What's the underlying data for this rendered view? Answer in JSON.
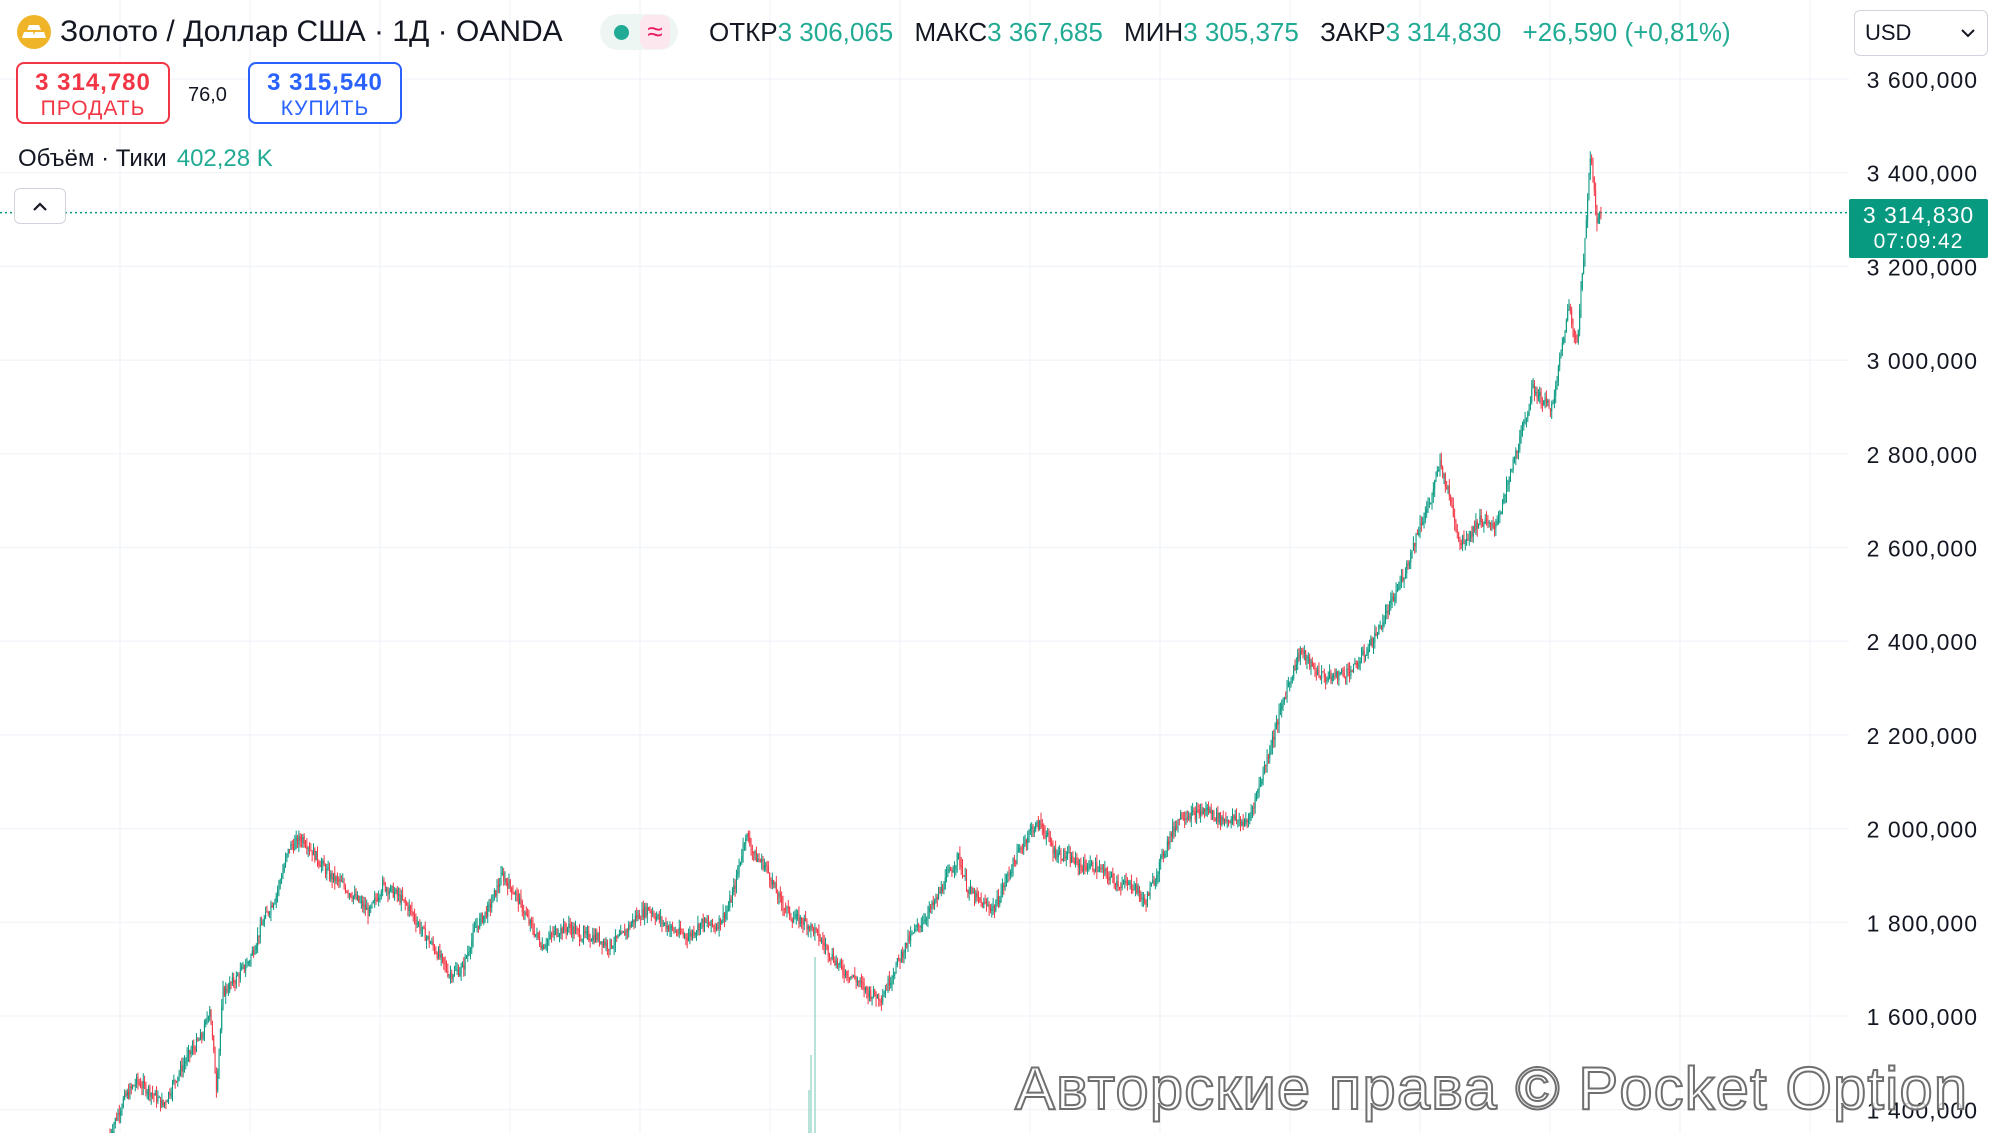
{
  "header": {
    "symbol_title": "Золото / Доллар США · 1Д · OANDA",
    "status_wave_glyph": "≈",
    "ohlc": {
      "open_label": "ОТКР",
      "open_value": "3 306,065",
      "high_label": "МАКС",
      "high_value": "3 367,685",
      "low_label": "МИН",
      "low_value": "3 305,375",
      "close_label": "ЗАКР",
      "close_value": "3 314,830",
      "change": "+26,590 (+0,81%)"
    }
  },
  "trade": {
    "sell_price": "3 314,780",
    "sell_label": "ПРОДАТЬ",
    "spread": "76,0",
    "buy_price": "3 315,540",
    "buy_label": "КУПИТЬ"
  },
  "volume": {
    "label": "Объём · Тики",
    "value": "402,28 K"
  },
  "currency": {
    "selected": "USD"
  },
  "price_tag": {
    "price": "3 314,830",
    "countdown": "07:09:42"
  },
  "watermark": "Авторские права © Pocket Option",
  "colors": {
    "up": "#089981",
    "down": "#f23645",
    "accent": "#2962ff",
    "grid": "#f0f3fa",
    "logo": "#f0b429"
  },
  "icons": {
    "logo": "gold-bars-icon",
    "collapse": "chevron-up-icon",
    "currency": "chevron-down-icon"
  },
  "chart_data": {
    "type": "candlestick",
    "y_axis": {
      "ticks": [
        "3 600,000",
        "3 400,000",
        "3 200,000",
        "3 000,000",
        "2 800,000",
        "2 600,000",
        "2 400,000",
        "2 200,000",
        "2 000,000",
        "1 800,000",
        "1 600,000",
        "1 400,000"
      ],
      "tick_values": [
        3600,
        3400,
        3200,
        3000,
        2800,
        2600,
        2400,
        2200,
        2000,
        1800,
        1600,
        1400
      ],
      "range": [
        1340,
        3700
      ]
    },
    "last_price": 3314.83,
    "approx_close_path": [
      [
        0,
        1350
      ],
      [
        10,
        1420
      ],
      [
        20,
        1460
      ],
      [
        30,
        1440
      ],
      [
        40,
        1410
      ],
      [
        50,
        1470
      ],
      [
        60,
        1520
      ],
      [
        70,
        1560
      ],
      [
        75,
        1620
      ],
      [
        80,
        1450
      ],
      [
        85,
        1650
      ],
      [
        95,
        1680
      ],
      [
        105,
        1720
      ],
      [
        115,
        1800
      ],
      [
        125,
        1860
      ],
      [
        135,
        1960
      ],
      [
        145,
        1980
      ],
      [
        155,
        1940
      ],
      [
        165,
        1900
      ],
      [
        175,
        1880
      ],
      [
        185,
        1850
      ],
      [
        195,
        1820
      ],
      [
        205,
        1880
      ],
      [
        215,
        1860
      ],
      [
        225,
        1830
      ],
      [
        235,
        1780
      ],
      [
        245,
        1740
      ],
      [
        255,
        1690
      ],
      [
        265,
        1700
      ],
      [
        275,
        1790
      ],
      [
        285,
        1830
      ],
      [
        295,
        1900
      ],
      [
        305,
        1860
      ],
      [
        315,
        1800
      ],
      [
        325,
        1750
      ],
      [
        335,
        1780
      ],
      [
        345,
        1790
      ],
      [
        355,
        1770
      ],
      [
        365,
        1770
      ],
      [
        375,
        1750
      ],
      [
        385,
        1770
      ],
      [
        395,
        1810
      ],
      [
        405,
        1830
      ],
      [
        415,
        1800
      ],
      [
        425,
        1780
      ],
      [
        435,
        1770
      ],
      [
        445,
        1800
      ],
      [
        455,
        1790
      ],
      [
        465,
        1830
      ],
      [
        470,
        1880
      ],
      [
        478,
        1990
      ],
      [
        485,
        1940
      ],
      [
        493,
        1920
      ],
      [
        503,
        1850
      ],
      [
        513,
        1810
      ],
      [
        523,
        1800
      ],
      [
        530,
        1780
      ],
      [
        540,
        1740
      ],
      [
        550,
        1700
      ],
      [
        560,
        1680
      ],
      [
        570,
        1650
      ],
      [
        580,
        1640
      ],
      [
        590,
        1700
      ],
      [
        600,
        1760
      ],
      [
        610,
        1800
      ],
      [
        620,
        1840
      ],
      [
        630,
        1900
      ],
      [
        638,
        1940
      ],
      [
        645,
        1870
      ],
      [
        655,
        1840
      ],
      [
        665,
        1830
      ],
      [
        675,
        1900
      ],
      [
        685,
        1960
      ],
      [
        693,
        2000
      ],
      [
        700,
        2010
      ],
      [
        710,
        1950
      ],
      [
        720,
        1940
      ],
      [
        730,
        1920
      ],
      [
        740,
        1920
      ],
      [
        750,
        1900
      ],
      [
        760,
        1880
      ],
      [
        770,
        1880
      ],
      [
        778,
        1840
      ],
      [
        785,
        1890
      ],
      [
        795,
        1970
      ],
      [
        805,
        2030
      ],
      [
        815,
        2030
      ],
      [
        825,
        2040
      ],
      [
        835,
        2020
      ],
      [
        845,
        2020
      ],
      [
        855,
        2010
      ],
      [
        865,
        2100
      ],
      [
        875,
        2200
      ],
      [
        885,
        2300
      ],
      [
        895,
        2380
      ],
      [
        905,
        2340
      ],
      [
        915,
        2320
      ],
      [
        925,
        2330
      ],
      [
        935,
        2340
      ],
      [
        945,
        2380
      ],
      [
        955,
        2430
      ],
      [
        965,
        2490
      ],
      [
        975,
        2560
      ],
      [
        985,
        2650
      ],
      [
        993,
        2700
      ],
      [
        1000,
        2780
      ],
      [
        1008,
        2700
      ],
      [
        1015,
        2610
      ],
      [
        1023,
        2630
      ],
      [
        1030,
        2660
      ],
      [
        1040,
        2640
      ],
      [
        1048,
        2700
      ],
      [
        1055,
        2780
      ],
      [
        1063,
        2860
      ],
      [
        1070,
        2940
      ],
      [
        1078,
        2910
      ],
      [
        1085,
        2900
      ],
      [
        1090,
        3000
      ],
      [
        1097,
        3120
      ],
      [
        1103,
        3030
      ],
      [
        1108,
        3220
      ],
      [
        1113,
        3440
      ],
      [
        1118,
        3300
      ],
      [
        1121,
        3315
      ]
    ]
  }
}
